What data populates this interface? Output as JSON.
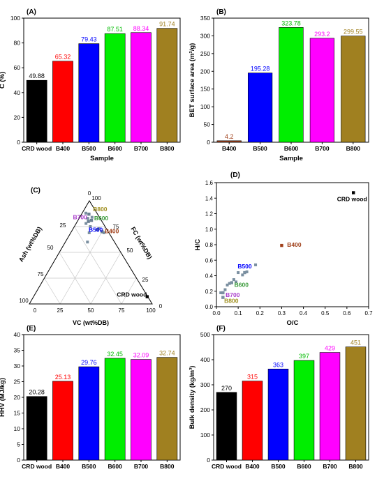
{
  "chart_data": [
    {
      "panel": "(A)",
      "type": "bar",
      "categories": [
        "CRD wood",
        "B400",
        "B500",
        "B600",
        "B700",
        "B800"
      ],
      "values": [
        49.88,
        65.32,
        79.43,
        87.51,
        88.34,
        91.74
      ],
      "value_labels": [
        "49.88",
        "65.32",
        "79.43",
        "87.51",
        "88.34",
        "91.74"
      ],
      "colors": [
        "#000000",
        "#ff0000",
        "#0000ff",
        "#00ee00",
        "#ff00ff",
        "#a08020"
      ],
      "label_colors": [
        "#000000",
        "#ff0000",
        "#0000ff",
        "#00bb00",
        "#ff00ff",
        "#a08020"
      ],
      "xlabel": "Sample",
      "ylabel": "C (%)",
      "ylim": [
        0,
        100
      ],
      "yticks": [
        0,
        20,
        40,
        60,
        80,
        100
      ]
    },
    {
      "panel": "(B)",
      "type": "bar",
      "categories": [
        "B400",
        "B500",
        "B600",
        "B700",
        "B800"
      ],
      "values": [
        4.2,
        195.28,
        323.78,
        293.2,
        299.55
      ],
      "value_labels": [
        "4.2",
        "195.28",
        "323.78",
        "293.2",
        "299.55"
      ],
      "colors": [
        "#a0401a",
        "#0000ff",
        "#00ee00",
        "#ff00ff",
        "#a08020"
      ],
      "label_colors": [
        "#a0401a",
        "#0000ff",
        "#00bb00",
        "#ff00ff",
        "#a08020"
      ],
      "xlabel": "Sample",
      "ylabel": "BET surface area (m²/g)",
      "ylim": [
        0,
        350
      ],
      "yticks": [
        0,
        50,
        100,
        150,
        200,
        250,
        300,
        350
      ]
    },
    {
      "panel": "(C)",
      "type": "scatter",
      "subtype": "ternary",
      "axis_labels": {
        "ash": "Ash (wt%DB)",
        "fc": "FC (wt%DB)",
        "vc": "VC (wt%DB)"
      },
      "ticks": [
        "0",
        "25",
        "50",
        "75",
        "100"
      ],
      "points": [
        {
          "label": "CRD wood",
          "ash": 0.5,
          "fc": 7.0,
          "vc": 92.5,
          "color": "#000000"
        },
        {
          "label": "B400",
          "ash": 5.0,
          "fc": 70.0,
          "vc": 25.0,
          "color": "#a0401a"
        },
        {
          "label": "B500",
          "ash": 8.0,
          "fc": 72.0,
          "vc": 20.0,
          "color": "#0000ff"
        },
        {
          "label": "B600",
          "ash": 8.0,
          "fc": 81.0,
          "vc": 11.0,
          "color": "#3a9a3a"
        },
        {
          "label": "B700",
          "ash": 11.0,
          "fc": 80.0,
          "vc": 9.0,
          "color": "#aa40cc"
        },
        {
          "label": "B800",
          "ash": 7.0,
          "fc": 87.0,
          "vc": 6.0,
          "color": "#a09020"
        }
      ],
      "extra_points": [
        {
          "ash": 6.0,
          "fc": 73.0,
          "vc": 21.0
        },
        {
          "ash": 4.0,
          "fc": 69.0,
          "vc": 27.0
        },
        {
          "ash": 12.0,
          "fc": 75.0,
          "vc": 13.0
        },
        {
          "ash": 10.0,
          "fc": 83.0,
          "vc": 7.0
        },
        {
          "ash": 6.0,
          "fc": 84.0,
          "vc": 10.0
        },
        {
          "ash": 14.0,
          "fc": 78.0,
          "vc": 8.0
        },
        {
          "ash": 9.0,
          "fc": 88.0,
          "vc": 3.0
        },
        {
          "ash": 16.0,
          "fc": 69.0,
          "vc": 15.0
        },
        {
          "ash": 22.0,
          "fc": 60.0,
          "vc": 18.0
        }
      ]
    },
    {
      "panel": "(D)",
      "type": "scatter",
      "xlabel": "O/C",
      "ylabel": "H/C",
      "xlim": [
        0,
        0.7
      ],
      "ylim": [
        0,
        1.6
      ],
      "xticks": [
        "0.0",
        "0.1",
        "0.2",
        "0.3",
        "0.4",
        "0.5",
        "0.6",
        "0.7"
      ],
      "yticks": [
        "0.0",
        "0.2",
        "0.4",
        "0.6",
        "0.8",
        "1.0",
        "1.2",
        "1.4",
        "1.6"
      ],
      "points": [
        {
          "label": "CRD wood",
          "x": 0.63,
          "y": 1.47,
          "color": "#000000"
        },
        {
          "label": "B400",
          "x": 0.3,
          "y": 0.79,
          "color": "#a0401a"
        },
        {
          "label": "B500",
          "x": 0.13,
          "y": 0.44,
          "color": "#0000ff"
        },
        {
          "label": "B600",
          "x": 0.07,
          "y": 0.31,
          "color": "#3a9a3a"
        },
        {
          "label": "B700",
          "x": 0.03,
          "y": 0.18,
          "color": "#aa40cc"
        },
        {
          "label": "B800",
          "x": 0.03,
          "y": 0.12,
          "color": "#a09020"
        }
      ],
      "extra_points": [
        {
          "x": 0.18,
          "y": 0.54
        },
        {
          "x": 0.14,
          "y": 0.45
        },
        {
          "x": 0.12,
          "y": 0.41
        },
        {
          "x": 0.08,
          "y": 0.35
        },
        {
          "x": 0.09,
          "y": 0.32
        },
        {
          "x": 0.06,
          "y": 0.3
        },
        {
          "x": 0.05,
          "y": 0.28
        },
        {
          "x": 0.04,
          "y": 0.22
        },
        {
          "x": 0.02,
          "y": 0.18
        },
        {
          "x": 0.1,
          "y": 0.44
        }
      ]
    },
    {
      "panel": "(E)",
      "type": "bar",
      "categories": [
        "CRD wood",
        "B400",
        "B500",
        "B600",
        "B700",
        "B800"
      ],
      "values": [
        20.28,
        25.13,
        29.76,
        32.45,
        32.09,
        32.74
      ],
      "value_labels": [
        "20.28",
        "25.13",
        "29.76",
        "32.45",
        "32.09",
        "32.74"
      ],
      "colors": [
        "#000000",
        "#ff0000",
        "#0000ff",
        "#00ee00",
        "#ff00ff",
        "#a08020"
      ],
      "label_colors": [
        "#000000",
        "#ff0000",
        "#0000ff",
        "#00bb00",
        "#ff00ff",
        "#a08020"
      ],
      "xlabel": "",
      "ylabel": "HHV (MJ/kg)",
      "ylim": [
        0,
        40
      ],
      "yticks": [
        0,
        5,
        10,
        15,
        20,
        25,
        30,
        35,
        40
      ]
    },
    {
      "panel": "(F)",
      "type": "bar",
      "categories": [
        "CRD wood",
        "B400",
        "B500",
        "B600",
        "B700",
        "B800"
      ],
      "values": [
        270,
        315,
        363,
        397,
        429,
        451
      ],
      "value_labels": [
        "270",
        "315",
        "363",
        "397",
        "429",
        "451"
      ],
      "colors": [
        "#000000",
        "#ff0000",
        "#0000ff",
        "#00ee00",
        "#ff00ff",
        "#a08020"
      ],
      "label_colors": [
        "#000000",
        "#ff0000",
        "#0000ff",
        "#00bb00",
        "#ff00ff",
        "#a08020"
      ],
      "xlabel": "",
      "ylabel": "Bulk density (kg/m³)",
      "ylim": [
        0,
        500
      ],
      "yticks": [
        0,
        100,
        200,
        300,
        400,
        500
      ]
    }
  ]
}
